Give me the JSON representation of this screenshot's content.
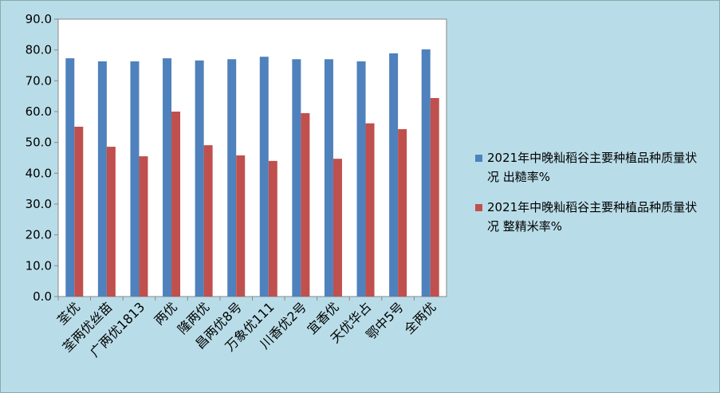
{
  "chart_data": {
    "type": "bar",
    "categories": [
      "荃优",
      "荃两优丝苗",
      "广两优1813",
      "两优",
      "隆两优",
      "昌两优8号",
      "万象优111",
      "川香优2号",
      "宜香优",
      "天优华占",
      "鄂中5号",
      "全两优"
    ],
    "series": [
      {
        "name": "2021年中晚籼稻谷主要种植品种质量状况 出糙率%",
        "color": "#4f81bd",
        "values": [
          77.3,
          76.3,
          76.3,
          77.3,
          76.6,
          77.0,
          77.8,
          77.0,
          77.0,
          76.3,
          78.9,
          80.2
        ]
      },
      {
        "name": "2021年中晚籼稻谷主要种植品种质量状况 整精米率%",
        "color": "#c0504d",
        "values": [
          55.1,
          48.6,
          45.5,
          60.0,
          49.1,
          45.8,
          44.0,
          59.5,
          44.7,
          56.2,
          54.3,
          64.4
        ]
      }
    ],
    "ylim": [
      0,
      90
    ],
    "yticks": [
      {
        "value": 0,
        "label": "0.0"
      },
      {
        "value": 10,
        "label": "10.0"
      },
      {
        "value": 20,
        "label": "20.0"
      },
      {
        "value": 30,
        "label": "30.0"
      },
      {
        "value": 40,
        "label": "40.0"
      },
      {
        "value": 50,
        "label": "50.0"
      },
      {
        "value": 60,
        "label": "60.0"
      },
      {
        "value": 70,
        "label": "70.0"
      },
      {
        "value": 80,
        "label": "80.0"
      },
      {
        "value": 90,
        "label": "90.0"
      }
    ],
    "grid": false
  }
}
